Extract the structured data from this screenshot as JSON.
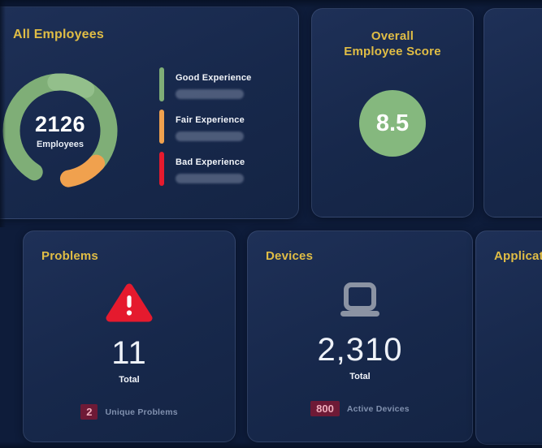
{
  "theme": {
    "page_background": "#0e1c3a",
    "card_background": "#17284b",
    "title_yellow": "#e0bd45",
    "text_white": "#f2f5fa",
    "muted_label": "#8090ae",
    "badge_background": "#6e1a36",
    "badge_text": "#f0adbc",
    "good_green": "#7fae77",
    "good_green_light": "#93bf8b",
    "fair_orange": "#f0a14e",
    "bad_red": "#e51a2e",
    "score_circle_green": "#85b87e",
    "device_icon_gray": "#8b93a3"
  },
  "cards": {
    "all_employees": {
      "title": "All Employees",
      "center_value": "2126",
      "center_label": "Employees",
      "legend": [
        {
          "label": "Good Experience",
          "color": "#7fae77"
        },
        {
          "label": "Fair Experience",
          "color": "#f0a14e"
        },
        {
          "label": "Bad Experience",
          "color": "#e51a2e"
        }
      ]
    },
    "overall_score": {
      "title_line1": "Overall",
      "title_line2": "Employee Score",
      "score": "8.5"
    },
    "problems": {
      "title": "Problems",
      "total_value": "11",
      "total_label": "Total",
      "badge_value": "2",
      "badge_label": "Unique Problems"
    },
    "devices": {
      "title": "Devices",
      "total_value": "2,310",
      "total_label": "Total",
      "badge_value": "800",
      "badge_label": "Active Devices"
    },
    "applications": {
      "title": "Applications"
    }
  },
  "chart_data": [
    {
      "type": "donut-gauge",
      "title": "All Employees",
      "center_value": 2126,
      "center_label": "Employees",
      "legend": [
        "Good Experience",
        "Fair Experience",
        "Bad Experience"
      ],
      "legend_colors": [
        "#7fae77",
        "#f0a14e",
        "#e51a2e"
      ],
      "legend_values_hidden": true,
      "ring": {
        "radius": 60,
        "thickness": 21
      },
      "segments": [
        {
          "label": "Good Experience",
          "color": "#7fae77",
          "start_deg": 212,
          "end_deg": 492
        },
        {
          "label": "Good Experience highlight",
          "color": "#93bf8b",
          "start_deg": 355,
          "end_deg": 392
        },
        {
          "label": "Fair Experience",
          "color": "#f0a14e",
          "start_deg": 132,
          "end_deg": 170
        }
      ]
    },
    {
      "type": "kpi",
      "title": "Overall Employee Score",
      "value": 8.5
    },
    {
      "type": "kpi",
      "title": "Problems",
      "total": 11,
      "unique_problems": 2
    },
    {
      "type": "kpi",
      "title": "Devices",
      "total": 2310,
      "active_devices": 800
    }
  ]
}
